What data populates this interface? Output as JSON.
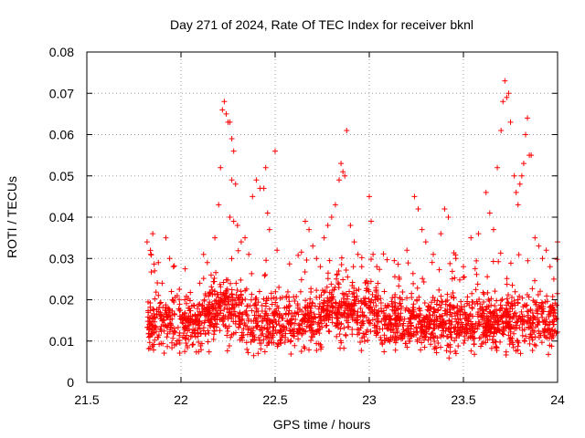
{
  "chart_data": {
    "type": "scatter",
    "title": "Day 271 of 2024, Rate Of TEC Index for receiver bknl",
    "xlabel": "GPS time / hours",
    "ylabel": "ROTI / TECUs",
    "xlim": [
      21.5,
      24
    ],
    "ylim": [
      0,
      0.08
    ],
    "xticks": [
      21.5,
      22,
      22.5,
      23,
      23.5,
      24
    ],
    "xtick_labels": [
      "21.5",
      "22",
      "22.5",
      "23",
      "23.5",
      "24"
    ],
    "yticks": [
      0,
      0.01,
      0.02,
      0.03,
      0.04,
      0.05,
      0.06,
      0.07,
      0.08
    ],
    "ytick_labels": [
      "0",
      "0.01",
      "0.02",
      "0.03",
      "0.04",
      "0.05",
      "0.06",
      "0.07",
      "0.08"
    ],
    "grid": true,
    "marker": "+",
    "series_color": "#ff0000",
    "series": [
      {
        "name": "ROTI",
        "points": [
          [
            21.82,
            0.034
          ],
          [
            21.84,
            0.031
          ],
          [
            21.85,
            0.036
          ],
          [
            21.86,
            0.027
          ],
          [
            21.88,
            0.029
          ],
          [
            21.9,
            0.024
          ],
          [
            21.92,
            0.035
          ],
          [
            21.94,
            0.03
          ],
          [
            21.96,
            0.028
          ],
          [
            21.98,
            0.021
          ],
          [
            22.02,
            0.02
          ],
          [
            22.06,
            0.016
          ],
          [
            22.1,
            0.024
          ],
          [
            22.12,
            0.031
          ],
          [
            22.14,
            0.029
          ],
          [
            22.16,
            0.026
          ],
          [
            22.18,
            0.035
          ],
          [
            22.2,
            0.043
          ],
          [
            22.21,
            0.052
          ],
          [
            22.22,
            0.066
          ],
          [
            22.23,
            0.068
          ],
          [
            22.24,
            0.065
          ],
          [
            22.25,
            0.063
          ],
          [
            22.26,
            0.063
          ],
          [
            22.27,
            0.059
          ],
          [
            22.28,
            0.056
          ],
          [
            22.27,
            0.049
          ],
          [
            22.29,
            0.048
          ],
          [
            22.26,
            0.04
          ],
          [
            22.28,
            0.039
          ],
          [
            22.3,
            0.038
          ],
          [
            22.32,
            0.034
          ],
          [
            22.34,
            0.035
          ],
          [
            22.36,
            0.031
          ],
          [
            22.38,
            0.045
          ],
          [
            22.4,
            0.049
          ],
          [
            22.42,
            0.047
          ],
          [
            22.44,
            0.047
          ],
          [
            22.45,
            0.052
          ],
          [
            22.46,
            0.041
          ],
          [
            22.47,
            0.037
          ],
          [
            22.5,
            0.056
          ],
          [
            22.52,
            0.023
          ],
          [
            22.55,
            0.018
          ],
          [
            22.58,
            0.014
          ],
          [
            22.62,
            0.019
          ],
          [
            22.66,
            0.039
          ],
          [
            22.68,
            0.037
          ],
          [
            22.7,
            0.033
          ],
          [
            22.72,
            0.03
          ],
          [
            22.74,
            0.028
          ],
          [
            22.76,
            0.035
          ],
          [
            22.78,
            0.038
          ],
          [
            22.8,
            0.04
          ],
          [
            22.82,
            0.043
          ],
          [
            22.84,
            0.049
          ],
          [
            22.85,
            0.053
          ],
          [
            22.86,
            0.051
          ],
          [
            22.87,
            0.05
          ],
          [
            22.88,
            0.061
          ],
          [
            22.9,
            0.038
          ],
          [
            22.92,
            0.034
          ],
          [
            22.94,
            0.031
          ],
          [
            22.96,
            0.028
          ],
          [
            23.0,
            0.045
          ],
          [
            23.01,
            0.039
          ],
          [
            23.02,
            0.031
          ],
          [
            23.04,
            0.028
          ],
          [
            23.08,
            0.022
          ],
          [
            23.12,
            0.019
          ],
          [
            23.16,
            0.025
          ],
          [
            23.2,
            0.032
          ],
          [
            23.24,
            0.045
          ],
          [
            23.26,
            0.042
          ],
          [
            23.28,
            0.037
          ],
          [
            23.3,
            0.034
          ],
          [
            23.34,
            0.031
          ],
          [
            23.38,
            0.036
          ],
          [
            23.4,
            0.042
          ],
          [
            23.42,
            0.04
          ],
          [
            23.46,
            0.03
          ],
          [
            23.5,
            0.028
          ],
          [
            23.54,
            0.035
          ],
          [
            23.58,
            0.036
          ],
          [
            23.62,
            0.046
          ],
          [
            23.64,
            0.041
          ],
          [
            23.66,
            0.037
          ],
          [
            23.68,
            0.052
          ],
          [
            23.7,
            0.061
          ],
          [
            23.71,
            0.068
          ],
          [
            23.72,
            0.073
          ],
          [
            23.73,
            0.069
          ],
          [
            23.74,
            0.07
          ],
          [
            23.75,
            0.063
          ],
          [
            23.77,
            0.05
          ],
          [
            23.78,
            0.046
          ],
          [
            23.79,
            0.043
          ],
          [
            23.8,
            0.048
          ],
          [
            23.81,
            0.05
          ],
          [
            23.82,
            0.053
          ],
          [
            23.83,
            0.06
          ],
          [
            23.84,
            0.064
          ],
          [
            23.85,
            0.055
          ],
          [
            23.86,
            0.055
          ],
          [
            23.88,
            0.035
          ],
          [
            23.9,
            0.033
          ],
          [
            23.92,
            0.03
          ],
          [
            23.94,
            0.032
          ],
          [
            23.96,
            0.028
          ],
          [
            23.98,
            0.025
          ],
          [
            24.0,
            0.034
          ]
        ],
        "dense_band": {
          "x_range": [
            21.82,
            24.0
          ],
          "typical_range": [
            0.005,
            0.024
          ],
          "median": 0.012,
          "point_count": 2200
        }
      }
    ]
  }
}
